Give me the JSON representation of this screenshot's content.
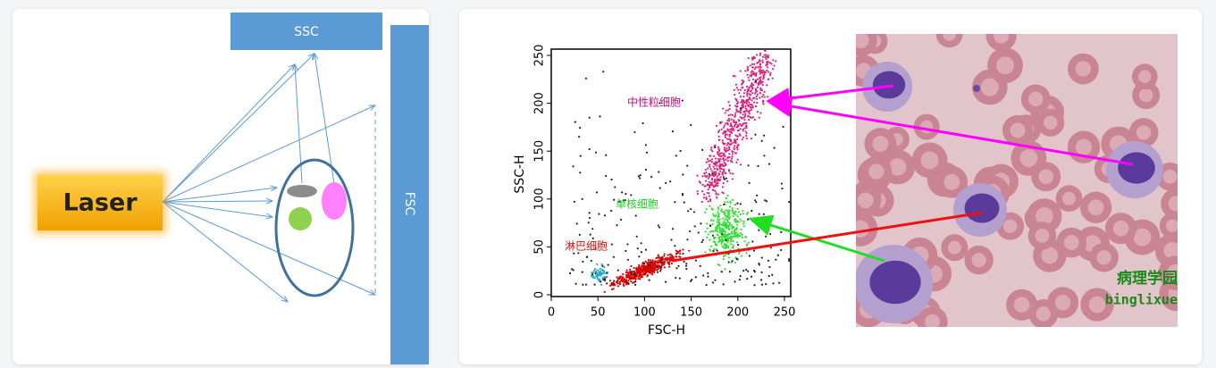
{
  "diagram": {
    "ssc_label": "SSC",
    "fsc_label": "FSC",
    "laser_label": "Laser"
  },
  "plot": {
    "x_label": "FSC-H",
    "y_label": "SSC-H",
    "xticks": [
      "0",
      "50",
      "100",
      "150",
      "200",
      "250"
    ],
    "yticks": [
      "0",
      "50",
      "100",
      "150",
      "200",
      "250"
    ],
    "neutrophils": "中性粒细胞",
    "monocytes": "单核细胞",
    "lymphocytes": "淋巴细胞"
  },
  "image": {
    "watermark": [
      "病理学园",
      "binglixue"
    ]
  }
}
